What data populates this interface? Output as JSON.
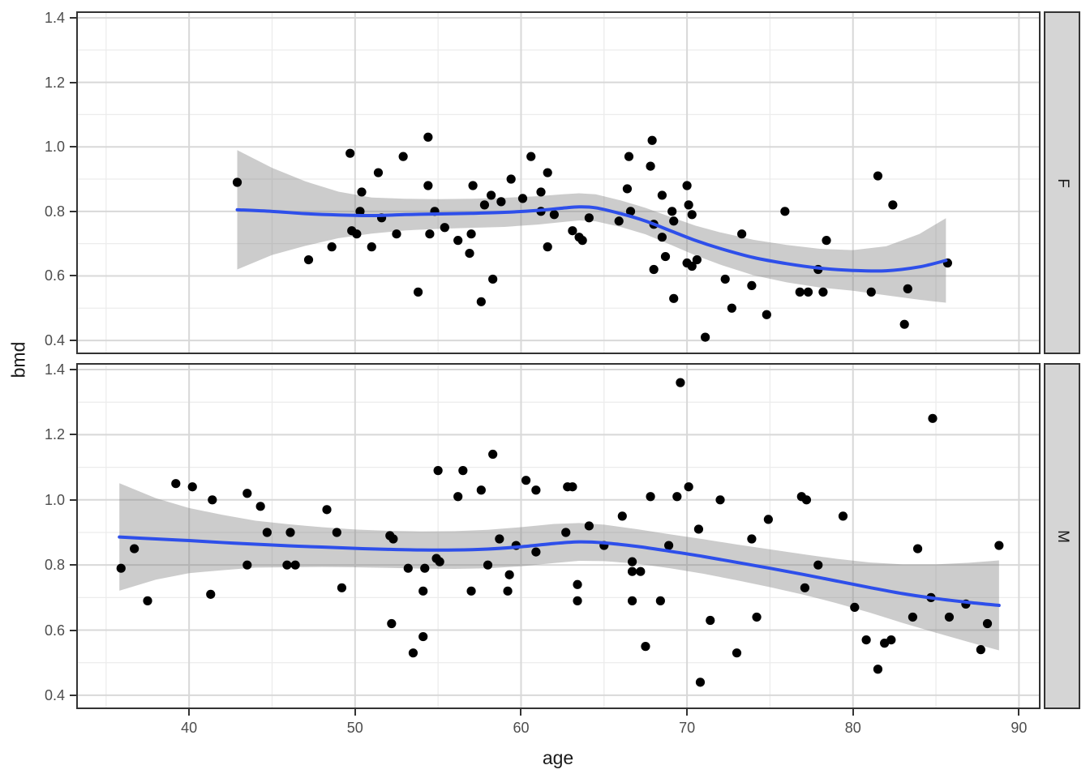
{
  "chart_data": {
    "type": "scatter",
    "title": "",
    "xlabel": "age",
    "ylabel": "bmd",
    "x_ticks": [
      40,
      50,
      60,
      70,
      80,
      90
    ],
    "x_tick_labels": [
      "40",
      "50",
      "60",
      "70",
      "80",
      "90"
    ],
    "x_minor": [
      35,
      45,
      55,
      65,
      75,
      85
    ],
    "x_range": [
      33.2,
      91.3
    ],
    "y_ticks": [
      0.4,
      0.6,
      0.8,
      1.0,
      1.2,
      1.4
    ],
    "y_tick_labels": [
      "0.4",
      "0.6",
      "0.8",
      "1.0",
      "1.2",
      "1.4"
    ],
    "y_minor": [
      0.5,
      0.7,
      0.9,
      1.1,
      1.3
    ],
    "y_range": [
      0.3575,
      1.42
    ],
    "grid": true,
    "legend": "none",
    "smoother": "loess with 95% confidence band",
    "facets": [
      {
        "label": "F",
        "points": [
          [
            42.9,
            0.89
          ],
          [
            47.2,
            0.65
          ],
          [
            48.6,
            0.69
          ],
          [
            49.7,
            0.98
          ],
          [
            49.8,
            0.74
          ],
          [
            50.1,
            0.73
          ],
          [
            50.3,
            0.8
          ],
          [
            50.4,
            0.86
          ],
          [
            51.0,
            0.69
          ],
          [
            51.4,
            0.92
          ],
          [
            51.6,
            0.78
          ],
          [
            52.5,
            0.73
          ],
          [
            52.9,
            0.97
          ],
          [
            53.8,
            0.55
          ],
          [
            54.4,
            1.03
          ],
          [
            54.4,
            0.88
          ],
          [
            54.5,
            0.73
          ],
          [
            54.8,
            0.8
          ],
          [
            55.4,
            0.75
          ],
          [
            56.2,
            0.71
          ],
          [
            56.9,
            0.67
          ],
          [
            57.0,
            0.73
          ],
          [
            57.1,
            0.88
          ],
          [
            57.6,
            0.52
          ],
          [
            57.8,
            0.82
          ],
          [
            58.2,
            0.85
          ],
          [
            58.3,
            0.59
          ],
          [
            58.8,
            0.83
          ],
          [
            59.4,
            0.9
          ],
          [
            60.1,
            0.84
          ],
          [
            60.6,
            0.97
          ],
          [
            61.2,
            0.86
          ],
          [
            61.2,
            0.8
          ],
          [
            61.6,
            0.92
          ],
          [
            61.6,
            0.69
          ],
          [
            62.0,
            0.79
          ],
          [
            63.1,
            0.74
          ],
          [
            63.5,
            0.72
          ],
          [
            63.7,
            0.71
          ],
          [
            64.1,
            0.78
          ],
          [
            65.9,
            0.77
          ],
          [
            66.4,
            0.87
          ],
          [
            66.5,
            0.97
          ],
          [
            66.6,
            0.8
          ],
          [
            67.8,
            0.94
          ],
          [
            67.9,
            1.02
          ],
          [
            68.0,
            0.76
          ],
          [
            68.0,
            0.62
          ],
          [
            68.5,
            0.85
          ],
          [
            68.5,
            0.72
          ],
          [
            68.7,
            0.66
          ],
          [
            69.1,
            0.8
          ],
          [
            69.2,
            0.77
          ],
          [
            69.2,
            0.53
          ],
          [
            70.0,
            0.88
          ],
          [
            70.0,
            0.64
          ],
          [
            70.1,
            0.82
          ],
          [
            70.3,
            0.79
          ],
          [
            70.3,
            0.63
          ],
          [
            70.6,
            0.65
          ],
          [
            71.1,
            0.41
          ],
          [
            72.3,
            0.59
          ],
          [
            72.7,
            0.5
          ],
          [
            73.3,
            0.73
          ],
          [
            73.9,
            0.57
          ],
          [
            74.8,
            0.48
          ],
          [
            75.9,
            0.8
          ],
          [
            76.8,
            0.55
          ],
          [
            77.3,
            0.55
          ],
          [
            77.9,
            0.62
          ],
          [
            78.4,
            0.71
          ],
          [
            78.2,
            0.55
          ],
          [
            81.1,
            0.55
          ],
          [
            81.5,
            0.91
          ],
          [
            82.4,
            0.82
          ],
          [
            83.1,
            0.45
          ],
          [
            83.3,
            0.56
          ],
          [
            85.7,
            0.64
          ]
        ],
        "smooth": [
          [
            42.9,
            0.805
          ],
          [
            45,
            0.8
          ],
          [
            47,
            0.793
          ],
          [
            49,
            0.789
          ],
          [
            51,
            0.787
          ],
          [
            53,
            0.79
          ],
          [
            55,
            0.792
          ],
          [
            57,
            0.794
          ],
          [
            59,
            0.797
          ],
          [
            61,
            0.803
          ],
          [
            62.5,
            0.81
          ],
          [
            63.5,
            0.814
          ],
          [
            64.5,
            0.811
          ],
          [
            66,
            0.793
          ],
          [
            67.5,
            0.77
          ],
          [
            69,
            0.74
          ],
          [
            70.5,
            0.71
          ],
          [
            72,
            0.685
          ],
          [
            74,
            0.657
          ],
          [
            76,
            0.638
          ],
          [
            78,
            0.624
          ],
          [
            80,
            0.617
          ],
          [
            82,
            0.616
          ],
          [
            84,
            0.628
          ],
          [
            85.6,
            0.648
          ]
        ],
        "band": [
          [
            42.9,
            0.62,
            0.99
          ],
          [
            45,
            0.665,
            0.935
          ],
          [
            47,
            0.693,
            0.893
          ],
          [
            49,
            0.717,
            0.861
          ],
          [
            51,
            0.731,
            0.843
          ],
          [
            53,
            0.741,
            0.839
          ],
          [
            55,
            0.746,
            0.838
          ],
          [
            57,
            0.749,
            0.839
          ],
          [
            59,
            0.752,
            0.842
          ],
          [
            61,
            0.759,
            0.847
          ],
          [
            62.5,
            0.767,
            0.853
          ],
          [
            63.5,
            0.772,
            0.856
          ],
          [
            64.5,
            0.769,
            0.853
          ],
          [
            66,
            0.752,
            0.834
          ],
          [
            67.5,
            0.729,
            0.811
          ],
          [
            69,
            0.697,
            0.783
          ],
          [
            70.5,
            0.664,
            0.756
          ],
          [
            72,
            0.635,
            0.735
          ],
          [
            74,
            0.602,
            0.712
          ],
          [
            76,
            0.58,
            0.696
          ],
          [
            78,
            0.564,
            0.684
          ],
          [
            80,
            0.554,
            0.68
          ],
          [
            82,
            0.54,
            0.692
          ],
          [
            84,
            0.526,
            0.73
          ],
          [
            85.6,
            0.517,
            0.779
          ]
        ]
      },
      {
        "label": "M",
        "points": [
          [
            35.9,
            0.79
          ],
          [
            36.7,
            0.85
          ],
          [
            37.5,
            0.69
          ],
          [
            39.2,
            1.05
          ],
          [
            40.2,
            1.04
          ],
          [
            41.3,
            0.71
          ],
          [
            41.4,
            1.0
          ],
          [
            43.5,
            1.02
          ],
          [
            43.5,
            0.8
          ],
          [
            44.3,
            0.98
          ],
          [
            44.7,
            0.9
          ],
          [
            45.9,
            0.8
          ],
          [
            46.1,
            0.9
          ],
          [
            46.4,
            0.8
          ],
          [
            48.3,
            0.97
          ],
          [
            48.9,
            0.9
          ],
          [
            49.2,
            0.73
          ],
          [
            52.1,
            0.89
          ],
          [
            52.2,
            0.62
          ],
          [
            52.3,
            0.88
          ],
          [
            53.2,
            0.79
          ],
          [
            53.5,
            0.53
          ],
          [
            54.1,
            0.58
          ],
          [
            54.2,
            0.79
          ],
          [
            54.1,
            0.72
          ],
          [
            54.9,
            0.82
          ],
          [
            55.1,
            0.81
          ],
          [
            55.0,
            1.09
          ],
          [
            56.2,
            1.01
          ],
          [
            56.5,
            1.09
          ],
          [
            57.0,
            0.72
          ],
          [
            57.6,
            1.03
          ],
          [
            58.0,
            0.8
          ],
          [
            58.3,
            1.14
          ],
          [
            58.7,
            0.88
          ],
          [
            59.2,
            0.72
          ],
          [
            59.3,
            0.77
          ],
          [
            59.7,
            0.86
          ],
          [
            60.3,
            1.06
          ],
          [
            60.9,
            1.03
          ],
          [
            60.9,
            0.84
          ],
          [
            62.7,
            0.9
          ],
          [
            62.8,
            1.04
          ],
          [
            63.1,
            1.04
          ],
          [
            63.4,
            0.74
          ],
          [
            63.4,
            0.69
          ],
          [
            64.1,
            0.92
          ],
          [
            65.0,
            0.86
          ],
          [
            66.1,
            0.95
          ],
          [
            66.7,
            0.81
          ],
          [
            66.7,
            0.78
          ],
          [
            66.7,
            0.69
          ],
          [
            67.2,
            0.78
          ],
          [
            67.5,
            0.55
          ],
          [
            67.8,
            1.01
          ],
          [
            68.4,
            0.69
          ],
          [
            68.9,
            0.86
          ],
          [
            69.4,
            1.01
          ],
          [
            69.6,
            1.36
          ],
          [
            70.1,
            1.04
          ],
          [
            70.7,
            0.91
          ],
          [
            70.8,
            0.44
          ],
          [
            71.4,
            0.63
          ],
          [
            72.0,
            1.0
          ],
          [
            73.0,
            0.53
          ],
          [
            73.9,
            0.88
          ],
          [
            74.2,
            0.64
          ],
          [
            74.9,
            0.94
          ],
          [
            76.9,
            1.01
          ],
          [
            77.1,
            0.73
          ],
          [
            77.2,
            1.0
          ],
          [
            77.9,
            0.8
          ],
          [
            79.4,
            0.95
          ],
          [
            80.1,
            0.67
          ],
          [
            80.8,
            0.57
          ],
          [
            81.5,
            0.48
          ],
          [
            81.9,
            0.56
          ],
          [
            82.3,
            0.57
          ],
          [
            83.6,
            0.64
          ],
          [
            83.9,
            0.85
          ],
          [
            84.7,
            0.7
          ],
          [
            84.8,
            1.25
          ],
          [
            85.8,
            0.64
          ],
          [
            86.8,
            0.68
          ],
          [
            87.7,
            0.54
          ],
          [
            88.1,
            0.62
          ],
          [
            88.8,
            0.86
          ]
        ],
        "smooth": [
          [
            35.8,
            0.886
          ],
          [
            38,
            0.88
          ],
          [
            40,
            0.875
          ],
          [
            42,
            0.869
          ],
          [
            44,
            0.864
          ],
          [
            46,
            0.859
          ],
          [
            48,
            0.855
          ],
          [
            50,
            0.851
          ],
          [
            52,
            0.848
          ],
          [
            54,
            0.846
          ],
          [
            56,
            0.846
          ],
          [
            58,
            0.849
          ],
          [
            60,
            0.856
          ],
          [
            62,
            0.866
          ],
          [
            63.5,
            0.871
          ],
          [
            65,
            0.868
          ],
          [
            67,
            0.857
          ],
          [
            69,
            0.842
          ],
          [
            71,
            0.826
          ],
          [
            73,
            0.808
          ],
          [
            75,
            0.79
          ],
          [
            77,
            0.771
          ],
          [
            79,
            0.751
          ],
          [
            81,
            0.731
          ],
          [
            83,
            0.712
          ],
          [
            85,
            0.697
          ],
          [
            87,
            0.685
          ],
          [
            88.8,
            0.676
          ]
        ],
        "band": [
          [
            35.8,
            0.721,
            1.051
          ],
          [
            38,
            0.755,
            1.005
          ],
          [
            40,
            0.775,
            0.975
          ],
          [
            42,
            0.784,
            0.954
          ],
          [
            44,
            0.792,
            0.936
          ],
          [
            46,
            0.793,
            0.925
          ],
          [
            48,
            0.794,
            0.916
          ],
          [
            50,
            0.793,
            0.909
          ],
          [
            52,
            0.791,
            0.905
          ],
          [
            54,
            0.789,
            0.903
          ],
          [
            56,
            0.788,
            0.904
          ],
          [
            58,
            0.79,
            0.908
          ],
          [
            60,
            0.796,
            0.916
          ],
          [
            62,
            0.806,
            0.926
          ],
          [
            63.5,
            0.813,
            0.929
          ],
          [
            65,
            0.812,
            0.924
          ],
          [
            67,
            0.804,
            0.91
          ],
          [
            69,
            0.79,
            0.894
          ],
          [
            71,
            0.773,
            0.879
          ],
          [
            73,
            0.753,
            0.863
          ],
          [
            75,
            0.732,
            0.848
          ],
          [
            77,
            0.709,
            0.833
          ],
          [
            79,
            0.683,
            0.819
          ],
          [
            81,
            0.654,
            0.808
          ],
          [
            83,
            0.622,
            0.802
          ],
          [
            85,
            0.592,
            0.802
          ],
          [
            87,
            0.563,
            0.807
          ],
          [
            88.8,
            0.538,
            0.814
          ]
        ]
      }
    ],
    "colors": {
      "background": "#ffffff",
      "panel_bg": "#ffffff",
      "grid_major": "#d8d8d8",
      "grid_minor": "#ececec",
      "panel_border": "#333333",
      "point": "#000000",
      "smooth_line": "#2e4fea",
      "band_fill": "rgba(128,128,128,0.40)",
      "strip_bg": "#d5d5d5",
      "strip_border": "#333333",
      "strip_text": "#1a1a1a",
      "axis_text": "#4d4d4d",
      "axis_title": "#1a1a1a",
      "tick_mark": "#333333"
    }
  }
}
